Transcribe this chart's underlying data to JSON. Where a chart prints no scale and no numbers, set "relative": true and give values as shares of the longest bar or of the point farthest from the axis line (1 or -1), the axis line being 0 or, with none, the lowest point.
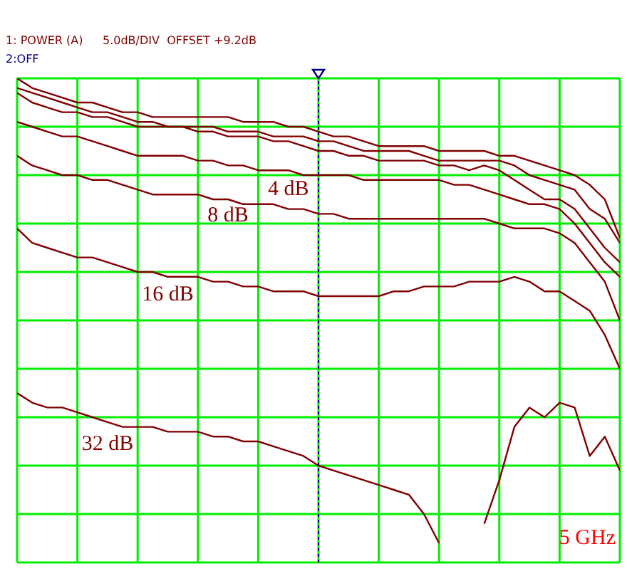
{
  "chart_data": {
    "type": "line",
    "relative": true,
    "grid": true,
    "marker": "none",
    "line_style": "solid",
    "categories": [
      null,
      null,
      null,
      null,
      null,
      null,
      null,
      null,
      null,
      null,
      null,
      null,
      null,
      null,
      null,
      null,
      null,
      null,
      null,
      null,
      null,
      null,
      null,
      null,
      null,
      null,
      null,
      null,
      null,
      null,
      null,
      null,
      null,
      null,
      null,
      null,
      null,
      null,
      null,
      null,
      null
    ],
    "series": [
      {
        "color": "#800000",
        "values": [
          1.0,
          0.98,
          0.97,
          0.96,
          0.95,
          0.95,
          0.94,
          0.93,
          0.93,
          0.92,
          0.92,
          0.92,
          0.92,
          0.92,
          0.92,
          0.91,
          0.91,
          0.91,
          0.9,
          0.9,
          0.89,
          0.88,
          0.88,
          0.87,
          0.86,
          0.86,
          0.86,
          0.86,
          0.85,
          0.85,
          0.85,
          0.85,
          0.84,
          0.84,
          0.83,
          0.82,
          0.81,
          0.8,
          0.78,
          0.75,
          0.67
        ]
      },
      {
        "color": "#800000",
        "values": [
          0.98,
          0.97,
          0.96,
          0.95,
          0.94,
          0.93,
          0.93,
          0.92,
          0.91,
          0.91,
          0.9,
          0.9,
          0.9,
          0.9,
          0.89,
          0.89,
          0.89,
          0.88,
          0.88,
          0.88,
          0.87,
          0.87,
          0.86,
          0.85,
          0.85,
          0.85,
          0.85,
          0.84,
          0.83,
          0.83,
          0.83,
          0.83,
          0.83,
          0.82,
          0.8,
          0.79,
          0.78,
          0.77,
          0.73,
          0.71,
          0.66
        ]
      },
      {
        "color": "#800000",
        "values": [
          0.97,
          0.95,
          0.94,
          0.93,
          0.93,
          0.92,
          0.92,
          0.91,
          0.9,
          0.9,
          0.9,
          0.9,
          0.89,
          0.89,
          0.88,
          0.88,
          0.88,
          0.87,
          0.87,
          0.86,
          0.85,
          0.85,
          0.84,
          0.84,
          0.83,
          0.83,
          0.83,
          0.83,
          0.82,
          0.82,
          0.81,
          0.82,
          0.81,
          0.79,
          0.77,
          0.75,
          0.75,
          0.73,
          0.69,
          0.65,
          0.62
        ]
      },
      {
        "name": "4 dB",
        "color": "#800000",
        "values": [
          0.91,
          0.9,
          0.89,
          0.88,
          0.88,
          0.87,
          0.86,
          0.85,
          0.84,
          0.84,
          0.84,
          0.84,
          0.83,
          0.83,
          0.82,
          0.82,
          0.81,
          0.81,
          0.81,
          0.8,
          0.8,
          0.8,
          0.8,
          0.79,
          0.79,
          0.79,
          0.79,
          0.79,
          0.79,
          0.78,
          0.78,
          0.77,
          0.76,
          0.75,
          0.74,
          0.74,
          0.73,
          0.7,
          0.66,
          0.62,
          0.59
        ]
      },
      {
        "name": "8 dB",
        "color": "#800000",
        "values": [
          0.84,
          0.82,
          0.81,
          0.8,
          0.8,
          0.79,
          0.79,
          0.78,
          0.77,
          0.76,
          0.76,
          0.76,
          0.76,
          0.75,
          0.75,
          0.74,
          0.74,
          0.74,
          0.73,
          0.73,
          0.72,
          0.72,
          0.71,
          0.71,
          0.71,
          0.71,
          0.71,
          0.71,
          0.71,
          0.71,
          0.71,
          0.71,
          0.7,
          0.69,
          0.69,
          0.69,
          0.68,
          0.66,
          0.62,
          0.58,
          0.5
        ]
      },
      {
        "name": "16 dB",
        "color": "#800000",
        "values": [
          0.69,
          0.66,
          0.65,
          0.64,
          0.63,
          0.63,
          0.62,
          0.61,
          0.6,
          0.6,
          0.59,
          0.59,
          0.59,
          0.58,
          0.58,
          0.57,
          0.57,
          0.56,
          0.56,
          0.56,
          0.55,
          0.55,
          0.55,
          0.55,
          0.55,
          0.56,
          0.56,
          0.57,
          0.57,
          0.57,
          0.58,
          0.58,
          0.58,
          0.59,
          0.58,
          0.56,
          0.56,
          0.54,
          0.52,
          0.47,
          0.4
        ]
      },
      {
        "name": "32 dB",
        "color": "#800000",
        "values": [
          0.35,
          0.33,
          0.32,
          0.32,
          0.31,
          0.3,
          0.29,
          0.28,
          0.28,
          0.28,
          0.27,
          0.27,
          0.27,
          0.26,
          0.26,
          0.25,
          0.25,
          0.24,
          0.23,
          0.22,
          0.2,
          0.19,
          0.18,
          0.17,
          0.16,
          0.15,
          0.14,
          0.1,
          0.04,
          null,
          null,
          0.08,
          0.17,
          0.28,
          0.32,
          0.3,
          0.33,
          0.32,
          0.22,
          0.26,
          0.19
        ]
      }
    ],
    "annotations": [
      "1: POWER (A)",
      "5.0dB/DIV  OFFSET +9.2dB",
      "2:OFF",
      "5 GHz"
    ]
  }
}
